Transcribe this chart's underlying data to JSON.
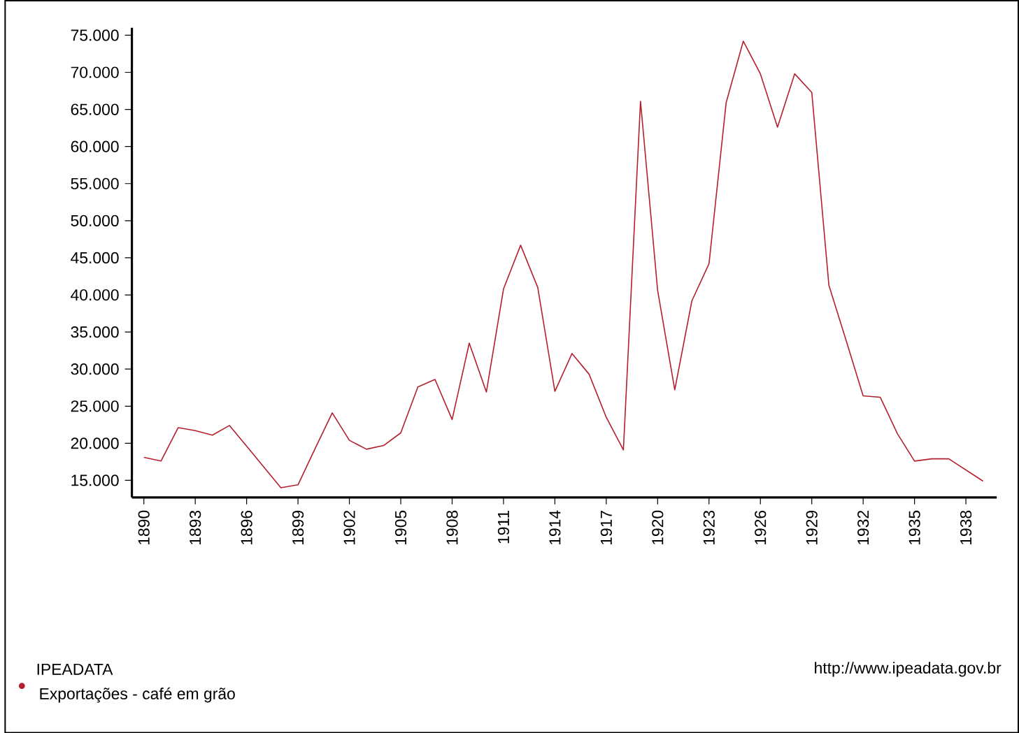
{
  "chart_data": {
    "type": "line",
    "x": [
      1890,
      1891,
      1892,
      1893,
      1894,
      1895,
      1896,
      1897,
      1898,
      1899,
      1900,
      1901,
      1902,
      1903,
      1904,
      1905,
      1906,
      1907,
      1908,
      1909,
      1910,
      1911,
      1912,
      1913,
      1914,
      1915,
      1916,
      1917,
      1918,
      1919,
      1920,
      1921,
      1922,
      1923,
      1924,
      1925,
      1926,
      1927,
      1928,
      1929,
      1930,
      1931,
      1932,
      1933,
      1934,
      1935,
      1936,
      1937,
      1938,
      1939
    ],
    "series": [
      {
        "name": "Exportações - café em grão",
        "color": "#b41e2d",
        "values": [
          18100,
          17600,
          22100,
          21700,
          21100,
          22400,
          19600,
          16800,
          14000,
          14400,
          19300,
          24100,
          20400,
          19200,
          19700,
          21400,
          27600,
          28600,
          23200,
          33500,
          26900,
          40800,
          46700,
          41000,
          27000,
          32100,
          29300,
          23500,
          19100,
          66100,
          40600,
          27200,
          39200,
          44200,
          65900,
          74200,
          69800,
          62600,
          69800,
          67300,
          41300,
          33900,
          26400,
          26200,
          21300,
          17600,
          17900,
          17900,
          16400,
          14900
        ]
      }
    ],
    "xlim": [
      1889.3,
      1939.8
    ],
    "ylim": [
      12700,
      76000
    ],
    "xticks": [
      1890,
      1893,
      1896,
      1899,
      1902,
      1905,
      1908,
      1911,
      1914,
      1917,
      1920,
      1923,
      1926,
      1929,
      1932,
      1935,
      1938
    ],
    "yticks": [
      {
        "value": 15000,
        "label": "15.000"
      },
      {
        "value": 20000,
        "label": "20.000"
      },
      {
        "value": 25000,
        "label": "25.000"
      },
      {
        "value": 30000,
        "label": "30.000"
      },
      {
        "value": 35000,
        "label": "35.000"
      },
      {
        "value": 40000,
        "label": "40.000"
      },
      {
        "value": 45000,
        "label": "45.000"
      },
      {
        "value": 50000,
        "label": "50.000"
      },
      {
        "value": 55000,
        "label": "55.000"
      },
      {
        "value": 60000,
        "label": "60.000"
      },
      {
        "value": 65000,
        "label": "65.000"
      },
      {
        "value": 70000,
        "label": "70.000"
      },
      {
        "value": 75000,
        "label": "75.000"
      }
    ],
    "legend_title": "IPEADATA",
    "legend": "bottom left",
    "annotations": [
      "http://www.ipeadata.gov.br"
    ],
    "grid": false,
    "marker": "none",
    "line_style": "solid"
  }
}
